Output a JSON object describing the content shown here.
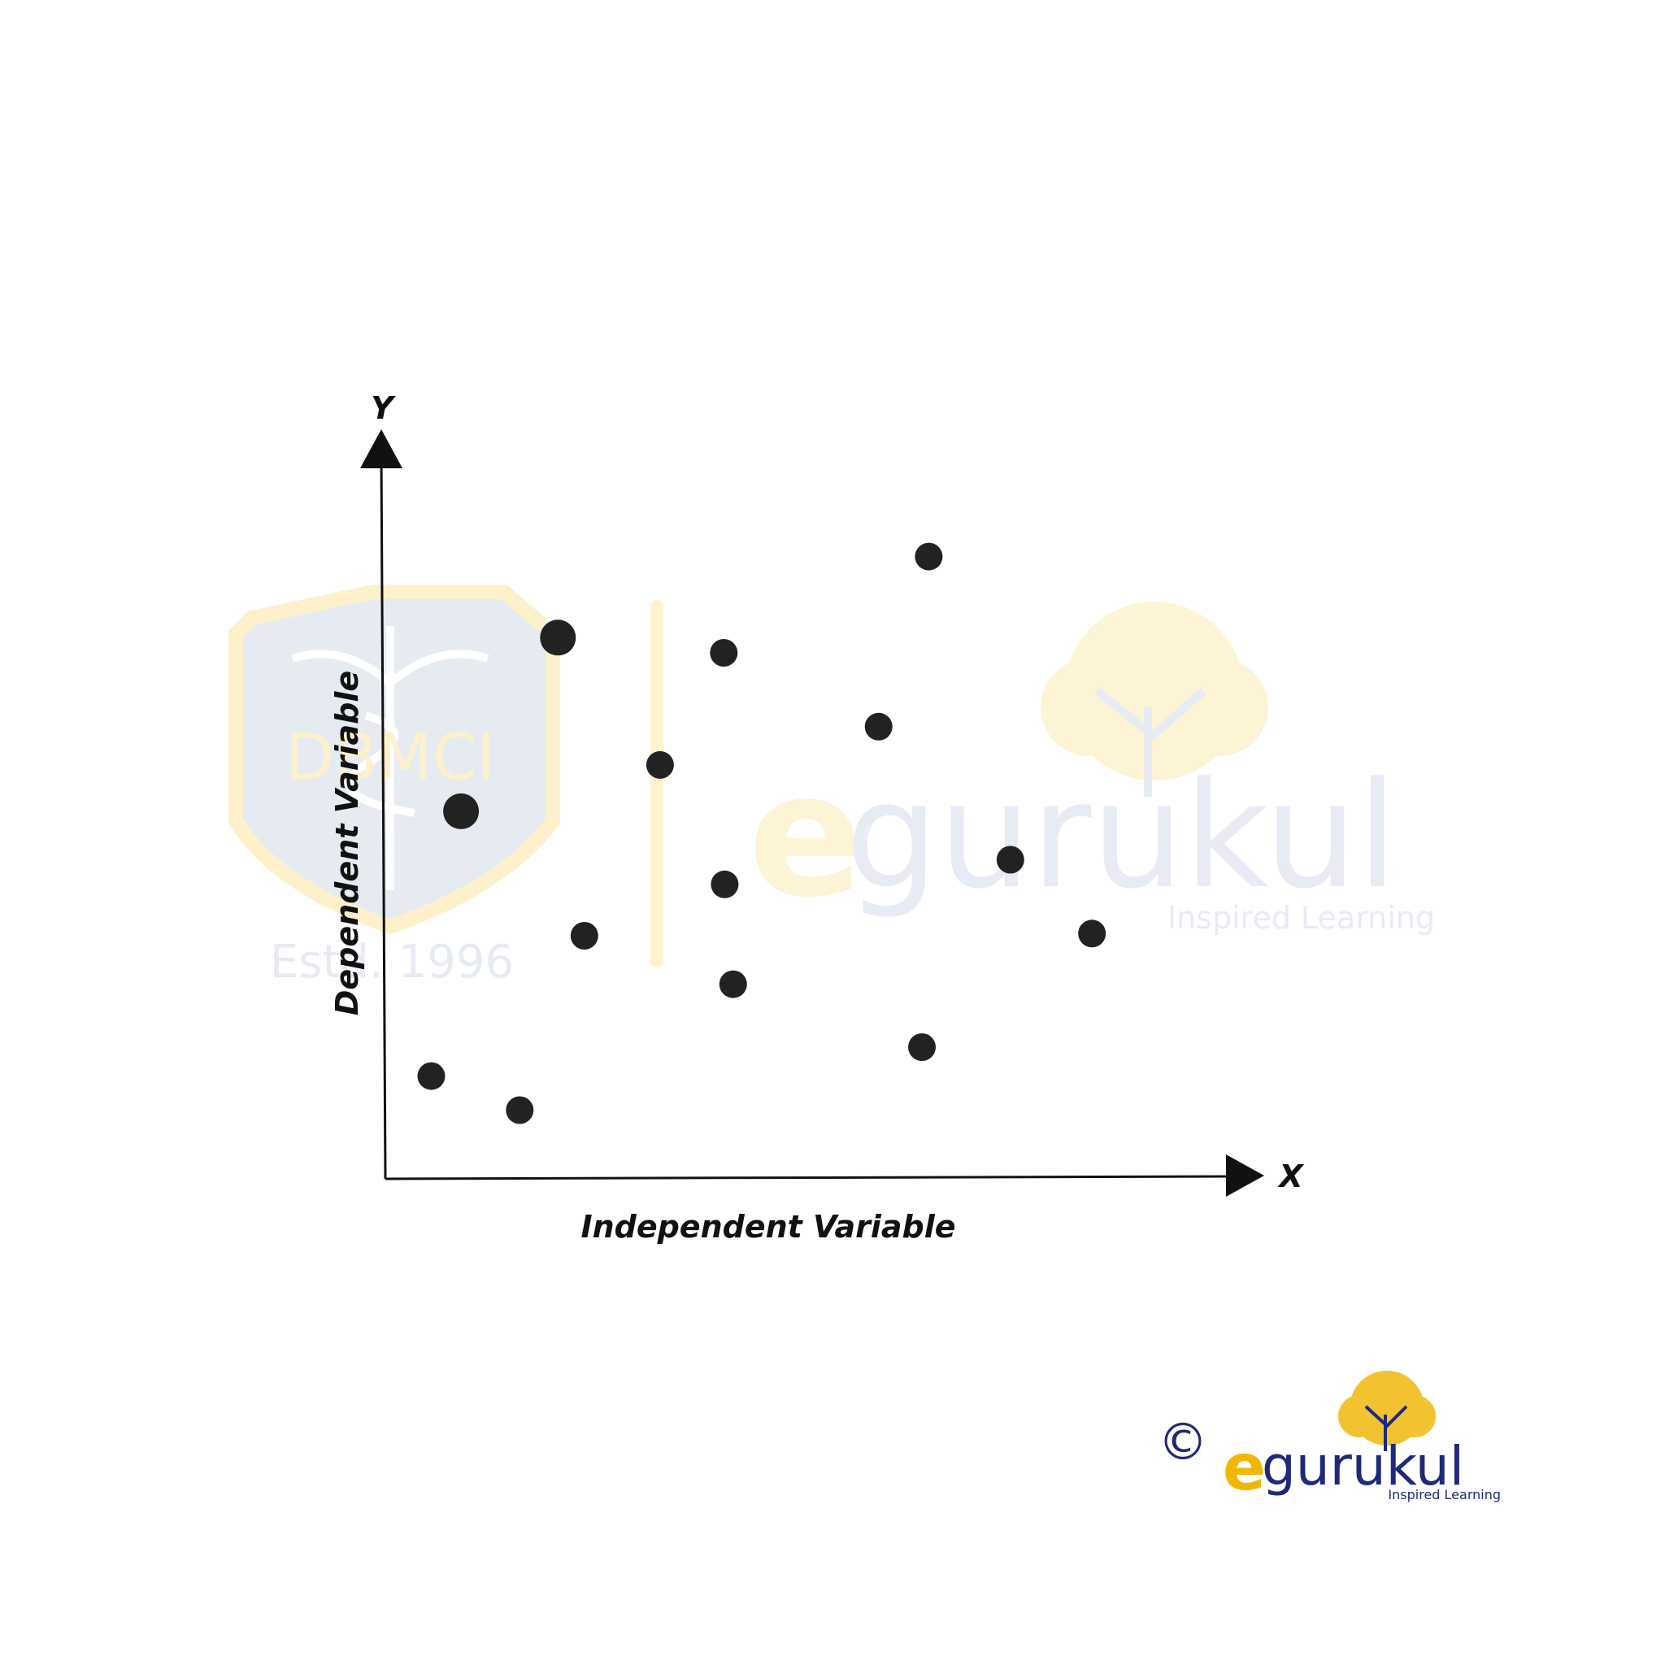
{
  "chart_data": {
    "type": "scatter",
    "title": "",
    "xlabel": "Independent Variable",
    "ylabel": "Dependent Variable",
    "x_axis_letter": "X",
    "y_axis_letter": "Y",
    "xlim": [
      0,
      100
    ],
    "ylim": [
      0,
      100
    ],
    "grid": false,
    "legend": "none",
    "point_color": "#222222",
    "axis_color": "#111111",
    "points": [
      {
        "x": 5.4,
        "y": 14.2
      },
      {
        "x": 15.8,
        "y": 9.5
      },
      {
        "x": 8.9,
        "y": 50.8
      },
      {
        "x": 20.3,
        "y": 74.8
      },
      {
        "x": 23.4,
        "y": 33.6
      },
      {
        "x": 32.3,
        "y": 57.2
      },
      {
        "x": 39.8,
        "y": 72.7
      },
      {
        "x": 40.9,
        "y": 26.9
      },
      {
        "x": 39.9,
        "y": 40.7
      },
      {
        "x": 58.0,
        "y": 62.5
      },
      {
        "x": 63.1,
        "y": 18.2
      },
      {
        "x": 63.9,
        "y": 86.0
      },
      {
        "x": 73.5,
        "y": 44.1
      },
      {
        "x": 83.1,
        "y": 33.9
      }
    ]
  },
  "watermarks": {
    "left_badge": {
      "text": "DBMCI",
      "estd": "Estd. 1996",
      "color": "#fbe9a8"
    },
    "center_brand": {
      "name": "egurukul",
      "tagline": "Inspired Learning",
      "accent": "#fdf0c8",
      "main": "#dfe5ef"
    }
  },
  "footer_logo": {
    "copyright": "©",
    "brand_e": "e",
    "brand_rest": "gurukul",
    "tagline": "Inspired Learning",
    "e_color": "#f2b705",
    "brand_color": "#1e2a78"
  }
}
